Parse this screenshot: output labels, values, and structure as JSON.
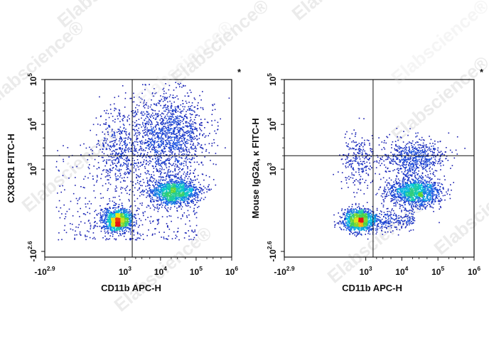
{
  "watermark": "Elabscience",
  "watermark_mark": "®",
  "chart_data": [
    {
      "type": "scatter",
      "subtype": "flow-cytometry-density-dot-plot",
      "xlabel": "CD11b APC-H",
      "ylabel": "CX3CR1 FITC-H",
      "x_scale": "biexponential",
      "y_scale": "biexponential",
      "x_ticks": [
        {
          "base": "-10",
          "exp": "2.9",
          "value": -794
        },
        {
          "base": "10",
          "exp": "3",
          "value": 1000
        },
        {
          "base": "10",
          "exp": "4",
          "value": 10000
        },
        {
          "base": "10",
          "exp": "5",
          "value": 100000
        },
        {
          "base": "10",
          "exp": "6",
          "value": 1000000
        }
      ],
      "y_ticks": [
        {
          "base": "-10",
          "exp": "2.6",
          "value": -398
        },
        {
          "base": "10",
          "exp": "3",
          "value": 1000
        },
        {
          "base": "10",
          "exp": "4",
          "value": 10000
        },
        {
          "base": "10",
          "exp": "5",
          "value": 100000
        }
      ],
      "quadrant_gate": {
        "x": 1600,
        "y": 2000
      },
      "marker": "*",
      "populations": [
        {
          "x_center": 600,
          "y_center": 0,
          "density": "high",
          "description": "CD11b- CX3CR1-"
        },
        {
          "x_center": 20000,
          "y_center": 400,
          "density": "high",
          "description": "CD11b+ CX3CR1 low"
        },
        {
          "x_center": 18000,
          "y_center": 8000,
          "density": "medium",
          "description": "CD11b+ CX3CR1+"
        }
      ]
    },
    {
      "type": "scatter",
      "subtype": "flow-cytometry-density-dot-plot",
      "xlabel": "CD11b APC-H",
      "ylabel": "Mouse IgG2a, κ FITC-H",
      "x_scale": "biexponential",
      "y_scale": "biexponential",
      "x_ticks": [
        {
          "base": "-10",
          "exp": "2.9",
          "value": -794
        },
        {
          "base": "10",
          "exp": "3",
          "value": 1000
        },
        {
          "base": "10",
          "exp": "4",
          "value": 10000
        },
        {
          "base": "10",
          "exp": "5",
          "value": 100000
        },
        {
          "base": "10",
          "exp": "6",
          "value": 1000000
        }
      ],
      "y_ticks": [
        {
          "base": "-10",
          "exp": "2.6",
          "value": -398
        },
        {
          "base": "10",
          "exp": "3",
          "value": 1000
        },
        {
          "base": "10",
          "exp": "4",
          "value": 10000
        },
        {
          "base": "10",
          "exp": "5",
          "value": 100000
        }
      ],
      "quadrant_gate": {
        "x": 1600,
        "y": 2000
      },
      "marker": "*",
      "populations": [
        {
          "x_center": 600,
          "y_center": 0,
          "density": "high",
          "description": "CD11b- isotype"
        },
        {
          "x_center": 20000,
          "y_center": 300,
          "density": "high",
          "description": "CD11b+ isotype"
        }
      ]
    }
  ]
}
